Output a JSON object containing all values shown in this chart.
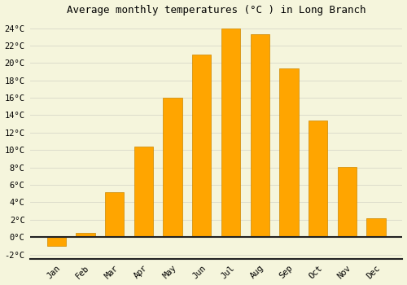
{
  "title": "Average monthly temperatures (°C ) in Long Branch",
  "months": [
    "Jan",
    "Feb",
    "Mar",
    "Apr",
    "May",
    "Jun",
    "Jul",
    "Aug",
    "Sep",
    "Oct",
    "Nov",
    "Dec"
  ],
  "values": [
    -1.0,
    0.5,
    5.2,
    10.4,
    16.0,
    21.0,
    24.0,
    23.3,
    19.4,
    13.4,
    8.1,
    2.2
  ],
  "bar_color": "#FFA500",
  "bar_edge_color": "#CC8800",
  "ylim": [
    -2.5,
    25
  ],
  "yticks": [
    -2,
    0,
    2,
    4,
    6,
    8,
    10,
    12,
    14,
    16,
    18,
    20,
    22,
    24
  ],
  "background_color": "#F5F5DC",
  "grid_color": "#D8D8C8",
  "title_fontsize": 9,
  "tick_fontsize": 7.5,
  "font_family": "monospace"
}
